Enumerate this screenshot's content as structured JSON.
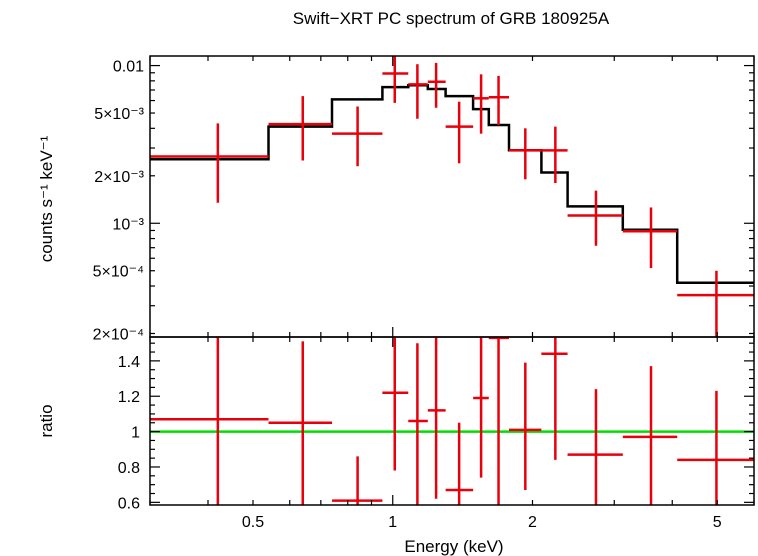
{
  "chart_data": [
    {
      "type": "scatter",
      "title": "Swift−XRT PC spectrum of GRB 180925A",
      "ylabel": "counts s⁻¹ keV⁻¹",
      "xscale": "log",
      "yscale": "log",
      "xlim": [
        0.3,
        6.0
      ],
      "ylim": [
        0.00019,
        0.0115
      ],
      "ytick_labels": [
        "0.01",
        "5×10⁻³",
        "2×10⁻³",
        "10⁻³",
        "5×10⁻⁴",
        "2×10⁻⁴"
      ],
      "ytick_values": [
        0.01,
        0.005,
        0.002,
        0.001,
        0.0005,
        0.0002
      ],
      "colors": {
        "data": "#e8000b",
        "model": "#000000"
      },
      "series": [
        {
          "kind": "data",
          "points": [
            {
              "x": 0.42,
              "xlo": 0.3,
              "xhi": 0.54,
              "y": 0.00265,
              "ylo": 0.00135,
              "yhi": 0.0043
            },
            {
              "x": 0.64,
              "xlo": 0.54,
              "xhi": 0.74,
              "y": 0.00425,
              "ylo": 0.0025,
              "yhi": 0.0064
            },
            {
              "x": 0.84,
              "xlo": 0.74,
              "xhi": 0.95,
              "y": 0.0037,
              "ylo": 0.0023,
              "yhi": 0.0055
            },
            {
              "x": 1.01,
              "xlo": 0.95,
              "xhi": 1.08,
              "y": 0.0089,
              "ylo": 0.0058,
              "yhi": 0.012
            },
            {
              "x": 1.13,
              "xlo": 1.08,
              "xhi": 1.19,
              "y": 0.0076,
              "ylo": 0.0046,
              "yhi": 0.0102
            },
            {
              "x": 1.24,
              "xlo": 1.19,
              "xhi": 1.3,
              "y": 0.0079,
              "ylo": 0.0054,
              "yhi": 0.0104
            },
            {
              "x": 1.39,
              "xlo": 1.3,
              "xhi": 1.49,
              "y": 0.0041,
              "ylo": 0.0024,
              "yhi": 0.0059
            },
            {
              "x": 1.55,
              "xlo": 1.49,
              "xhi": 1.61,
              "y": 0.0062,
              "ylo": 0.0037,
              "yhi": 0.0088
            },
            {
              "x": 1.69,
              "xlo": 1.61,
              "xhi": 1.78,
              "y": 0.0063,
              "ylo": 0.0042,
              "yhi": 0.0086
            },
            {
              "x": 1.93,
              "xlo": 1.78,
              "xhi": 2.09,
              "y": 0.0029,
              "ylo": 0.0019,
              "yhi": 0.004
            },
            {
              "x": 2.24,
              "xlo": 2.09,
              "xhi": 2.38,
              "y": 0.0029,
              "ylo": 0.0018,
              "yhi": 0.0041
            },
            {
              "x": 2.74,
              "xlo": 2.38,
              "xhi": 3.13,
              "y": 0.00112,
              "ylo": 0.00072,
              "yhi": 0.00161
            },
            {
              "x": 3.6,
              "xlo": 3.13,
              "xhi": 4.1,
              "y": 0.00089,
              "ylo": 0.00052,
              "yhi": 0.00126
            },
            {
              "x": 4.98,
              "xlo": 4.1,
              "xhi": 6.0,
              "y": 0.00035,
              "ylo": 0.00018,
              "yhi": 0.0005
            }
          ]
        },
        {
          "kind": "model",
          "steps": [
            {
              "xlo": 0.3,
              "xhi": 0.54,
              "y": 0.00255
            },
            {
              "xlo": 0.54,
              "xhi": 0.74,
              "y": 0.0041
            },
            {
              "xlo": 0.74,
              "xhi": 0.95,
              "y": 0.0061
            },
            {
              "xlo": 0.95,
              "xhi": 1.08,
              "y": 0.0073
            },
            {
              "xlo": 1.08,
              "xhi": 1.19,
              "y": 0.0075
            },
            {
              "xlo": 1.19,
              "xhi": 1.3,
              "y": 0.0071
            },
            {
              "xlo": 1.3,
              "xhi": 1.49,
              "y": 0.0064
            },
            {
              "xlo": 1.49,
              "xhi": 1.61,
              "y": 0.0053
            },
            {
              "xlo": 1.61,
              "xhi": 1.78,
              "y": 0.0042
            },
            {
              "xlo": 1.78,
              "xhi": 2.09,
              "y": 0.0029
            },
            {
              "xlo": 2.09,
              "xhi": 2.38,
              "y": 0.0021
            },
            {
              "xlo": 2.38,
              "xhi": 3.13,
              "y": 0.00128
            },
            {
              "xlo": 3.13,
              "xhi": 4.1,
              "y": 0.00091
            },
            {
              "xlo": 4.1,
              "xhi": 6.0,
              "y": 0.00042
            }
          ]
        }
      ]
    },
    {
      "type": "scatter",
      "xlabel": "Energy (keV)",
      "ylabel": "ratio",
      "xscale": "log",
      "yscale": "linear",
      "xlim": [
        0.3,
        6.0
      ],
      "ylim": [
        0.585,
        1.535
      ],
      "xtick_labels": [
        "0.5",
        "1",
        "2",
        "5"
      ],
      "xtick_values": [
        0.5,
        1,
        2,
        5
      ],
      "ytick_labels": [
        "1.4",
        "1.2",
        "1",
        "0.8",
        "0.6"
      ],
      "ytick_values": [
        1.4,
        1.2,
        1.0,
        0.8,
        0.6
      ],
      "reference_line": 1.0,
      "colors": {
        "data": "#e8000b",
        "reference": "#00e000"
      },
      "series": [
        {
          "kind": "ratio",
          "points": [
            {
              "x": 0.42,
              "xlo": 0.3,
              "xhi": 0.54,
              "y": 1.07,
              "ylo": 0.5,
              "yhi": 1.6
            },
            {
              "x": 0.64,
              "xlo": 0.54,
              "xhi": 0.74,
              "y": 1.05,
              "ylo": 0.5,
              "yhi": 1.51
            },
            {
              "x": 0.84,
              "xlo": 0.74,
              "xhi": 0.95,
              "y": 0.61,
              "ylo": 0.5,
              "yhi": 0.86
            },
            {
              "x": 1.01,
              "xlo": 0.95,
              "xhi": 1.08,
              "y": 1.22,
              "ylo": 0.78,
              "yhi": 1.6
            },
            {
              "x": 1.13,
              "xlo": 1.08,
              "xhi": 1.19,
              "y": 1.06,
              "ylo": 0.5,
              "yhi": 1.5
            },
            {
              "x": 1.24,
              "xlo": 1.19,
              "xhi": 1.3,
              "y": 1.12,
              "ylo": 0.62,
              "yhi": 1.6
            },
            {
              "x": 1.39,
              "xlo": 1.3,
              "xhi": 1.49,
              "y": 0.67,
              "ylo": 0.5,
              "yhi": 1.05
            },
            {
              "x": 1.55,
              "xlo": 1.49,
              "xhi": 1.61,
              "y": 1.19,
              "ylo": 0.74,
              "yhi": 1.6
            },
            {
              "x": 1.69,
              "xlo": 1.61,
              "xhi": 1.78,
              "y": 1.53,
              "ylo": 0.5,
              "yhi": 1.6
            },
            {
              "x": 1.93,
              "xlo": 1.78,
              "xhi": 2.09,
              "y": 1.01,
              "ylo": 0.67,
              "yhi": 1.39
            },
            {
              "x": 2.24,
              "xlo": 2.09,
              "xhi": 2.38,
              "y": 1.44,
              "ylo": 0.84,
              "yhi": 1.6
            },
            {
              "x": 2.74,
              "xlo": 2.38,
              "xhi": 3.13,
              "y": 0.87,
              "ylo": 0.55,
              "yhi": 1.24
            },
            {
              "x": 3.6,
              "xlo": 3.13,
              "xhi": 4.1,
              "y": 0.97,
              "ylo": 0.56,
              "yhi": 1.37
            },
            {
              "x": 4.98,
              "xlo": 4.1,
              "xhi": 6.0,
              "y": 0.84,
              "ylo": 0.5,
              "yhi": 1.23
            }
          ]
        }
      ]
    }
  ]
}
